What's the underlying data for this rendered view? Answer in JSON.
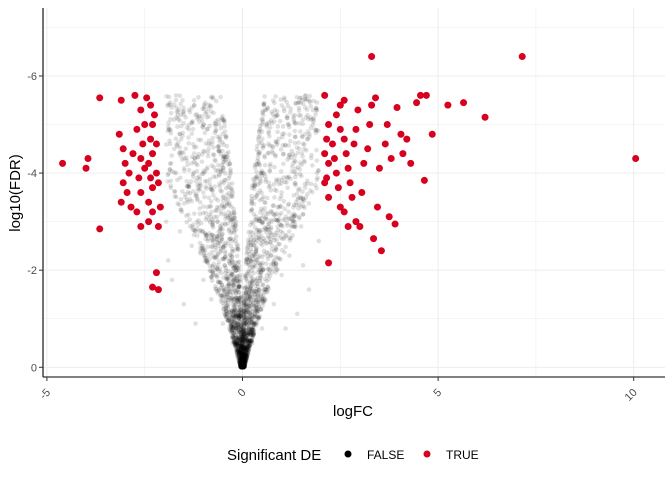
{
  "chart_data": {
    "type": "scatter",
    "title": "",
    "xlabel": "logFC",
    "ylabel": "log10(FDR)",
    "xlim": [
      -5.1,
      10.8
    ],
    "ylim": [
      0.2,
      -7.4
    ],
    "x_ticks": [
      -5,
      0,
      5,
      10
    ],
    "x_tick_labels": [
      "-5",
      "0",
      "5",
      "10"
    ],
    "y_ticks": [
      0,
      -2,
      -4,
      -6
    ],
    "y_tick_labels": [
      "0",
      "-2",
      "-4",
      "-6"
    ],
    "grid": true,
    "legend": {
      "title": "Significant DE",
      "position": "bottom",
      "entries": [
        {
          "label": "FALSE",
          "color": "#000000"
        },
        {
          "label": "TRUE",
          "color": "#d7001f"
        }
      ]
    },
    "series": [
      {
        "name": "FALSE",
        "color": "#000000",
        "opacity": 0.12,
        "note_shape": "dense V-shaped cloud of non-significant genes, |logFC| < 2",
        "points": [
          [
            0,
            0.0
          ],
          [
            -0.05,
            -0.3
          ],
          [
            0.05,
            -0.3
          ],
          [
            -0.1,
            -0.6
          ],
          [
            0.1,
            -0.6
          ],
          [
            -0.15,
            -0.9
          ],
          [
            0.15,
            -0.9
          ],
          [
            -0.2,
            -1.2
          ],
          [
            0.2,
            -1.2
          ],
          [
            -0.3,
            -1.5
          ],
          [
            0.3,
            -1.5
          ],
          [
            -0.35,
            -1.8
          ],
          [
            0.35,
            -1.8
          ],
          [
            -0.45,
            -2.1
          ],
          [
            0.45,
            -2.1
          ],
          [
            -0.55,
            -2.4
          ],
          [
            0.55,
            -2.4
          ],
          [
            -0.65,
            -2.7
          ],
          [
            0.65,
            -2.7
          ],
          [
            -0.75,
            -3.0
          ],
          [
            0.75,
            -3.0
          ],
          [
            -0.9,
            -3.3
          ],
          [
            0.9,
            -3.3
          ],
          [
            -1.0,
            -3.6
          ],
          [
            1.0,
            -3.6
          ],
          [
            -1.15,
            -3.9
          ],
          [
            1.15,
            -3.9
          ],
          [
            -1.3,
            -4.2
          ],
          [
            1.3,
            -4.2
          ],
          [
            -1.45,
            -4.5
          ],
          [
            1.45,
            -4.5
          ],
          [
            -1.6,
            -4.8
          ],
          [
            1.6,
            -4.8
          ],
          [
            -1.75,
            -5.1
          ],
          [
            1.75,
            -5.1
          ],
          [
            -1.85,
            -5.4
          ],
          [
            1.8,
            -5.3
          ],
          [
            -1.7,
            -5.6
          ],
          [
            -1.95,
            -3.0
          ],
          [
            1.95,
            -2.6
          ],
          [
            -1.9,
            -2.2
          ],
          [
            1.9,
            -4.0
          ],
          [
            -1.8,
            -1.8
          ],
          [
            1.7,
            -1.6
          ],
          [
            -1.5,
            -1.3
          ],
          [
            1.4,
            -1.1
          ],
          [
            -1.2,
            -0.9
          ],
          [
            1.1,
            -0.8
          ],
          [
            -1.6,
            -2.8
          ],
          [
            1.5,
            -2.9
          ],
          [
            -1.3,
            -2.5
          ],
          [
            1.2,
            -2.3
          ],
          [
            -0.8,
            -1.4
          ],
          [
            0.8,
            -1.3
          ],
          [
            -1.0,
            -1.8
          ],
          [
            1.0,
            -1.9
          ],
          [
            -0.5,
            -0.9
          ],
          [
            0.5,
            -0.8
          ],
          [
            -1.4,
            -3.4
          ],
          [
            1.3,
            -3.1
          ],
          [
            -1.7,
            -4.0
          ],
          [
            1.6,
            -3.7
          ],
          [
            -1.85,
            -4.6
          ],
          [
            1.85,
            -4.9
          ],
          [
            -1.55,
            -3.2
          ],
          [
            1.55,
            -2.1
          ],
          [
            -1.1,
            -2.8
          ],
          [
            1.1,
            -2.7
          ],
          [
            -0.7,
            -2.0
          ],
          [
            0.7,
            -2.0
          ],
          [
            -0.25,
            -0.5
          ],
          [
            0.25,
            -0.5
          ]
        ]
      },
      {
        "name": "TRUE",
        "color": "#d7001f",
        "opacity": 1,
        "points": [
          [
            -4.6,
            -4.2
          ],
          [
            -4.0,
            -4.1
          ],
          [
            -3.95,
            -4.3
          ],
          [
            -3.65,
            -5.55
          ],
          [
            -3.65,
            -2.85
          ],
          [
            -3.1,
            -5.5
          ],
          [
            -3.15,
            -4.8
          ],
          [
            -3.05,
            -4.5
          ],
          [
            -3.0,
            -4.2
          ],
          [
            -3.05,
            -3.8
          ],
          [
            -3.1,
            -3.4
          ],
          [
            -2.75,
            -5.6
          ],
          [
            -2.6,
            -5.3
          ],
          [
            -2.7,
            -4.9
          ],
          [
            -2.5,
            -5.0
          ],
          [
            -2.55,
            -4.6
          ],
          [
            -2.6,
            -4.3
          ],
          [
            -2.5,
            -4.1
          ],
          [
            -2.65,
            -3.9
          ],
          [
            -2.6,
            -3.6
          ],
          [
            -2.7,
            -3.2
          ],
          [
            -2.6,
            -2.9
          ],
          [
            -2.4,
            -3.0
          ],
          [
            -2.35,
            -5.4
          ],
          [
            -2.3,
            -5.0
          ],
          [
            -2.35,
            -4.7
          ],
          [
            -2.3,
            -4.4
          ],
          [
            -2.4,
            -4.2
          ],
          [
            -2.35,
            -3.9
          ],
          [
            -2.3,
            -3.7
          ],
          [
            -2.4,
            -3.4
          ],
          [
            -2.3,
            -3.2
          ],
          [
            -2.2,
            -4.0
          ],
          [
            -2.15,
            -3.8
          ],
          [
            -2.2,
            -4.6
          ],
          [
            -2.1,
            -3.3
          ],
          [
            -2.15,
            -2.9
          ],
          [
            -2.2,
            -1.95
          ],
          [
            -2.3,
            -1.65
          ],
          [
            -2.15,
            -1.6
          ],
          [
            -2.85,
            -3.3
          ],
          [
            -2.9,
            -4.0
          ],
          [
            -2.8,
            -4.4
          ],
          [
            -2.95,
            -3.6
          ],
          [
            -2.45,
            -5.55
          ],
          [
            -2.25,
            -5.2
          ],
          [
            2.2,
            -2.15
          ],
          [
            2.1,
            -5.6
          ],
          [
            2.2,
            -5.0
          ],
          [
            2.15,
            -4.7
          ],
          [
            2.1,
            -4.4
          ],
          [
            2.2,
            -4.2
          ],
          [
            2.15,
            -3.9
          ],
          [
            2.2,
            -3.5
          ],
          [
            2.1,
            -3.8
          ],
          [
            2.3,
            -4.6
          ],
          [
            2.35,
            -4.3
          ],
          [
            2.4,
            -4.0
          ],
          [
            2.45,
            -3.7
          ],
          [
            2.5,
            -3.3
          ],
          [
            2.4,
            -5.2
          ],
          [
            2.5,
            -5.4
          ],
          [
            2.6,
            -5.5
          ],
          [
            2.5,
            -4.9
          ],
          [
            2.6,
            -4.7
          ],
          [
            2.65,
            -4.4
          ],
          [
            2.7,
            -4.1
          ],
          [
            2.75,
            -3.8
          ],
          [
            2.8,
            -3.5
          ],
          [
            2.6,
            -3.2
          ],
          [
            2.7,
            -2.9
          ],
          [
            2.85,
            -4.6
          ],
          [
            2.9,
            -4.9
          ],
          [
            2.95,
            -5.3
          ],
          [
            2.9,
            -3.0
          ],
          [
            3.0,
            -2.9
          ],
          [
            3.05,
            -3.6
          ],
          [
            3.1,
            -4.2
          ],
          [
            3.2,
            -4.5
          ],
          [
            3.25,
            -5.0
          ],
          [
            3.3,
            -5.4
          ],
          [
            3.3,
            -6.4
          ],
          [
            3.4,
            -5.55
          ],
          [
            3.35,
            -2.65
          ],
          [
            3.45,
            -3.3
          ],
          [
            3.5,
            -4.1
          ],
          [
            3.55,
            -2.4
          ],
          [
            3.65,
            -4.6
          ],
          [
            3.7,
            -5.0
          ],
          [
            3.8,
            -4.3
          ],
          [
            3.75,
            -3.1
          ],
          [
            3.9,
            -2.95
          ],
          [
            3.95,
            -5.35
          ],
          [
            4.05,
            -4.8
          ],
          [
            4.1,
            -4.4
          ],
          [
            4.2,
            -4.7
          ],
          [
            4.3,
            -4.2
          ],
          [
            4.45,
            -5.45
          ],
          [
            4.55,
            -5.6
          ],
          [
            4.7,
            -5.6
          ],
          [
            4.65,
            -3.85
          ],
          [
            4.85,
            -4.8
          ],
          [
            5.25,
            -5.4
          ],
          [
            5.65,
            -5.45
          ],
          [
            6.2,
            -5.15
          ],
          [
            7.15,
            -6.4
          ],
          [
            10.05,
            -4.3
          ]
        ]
      }
    ]
  }
}
